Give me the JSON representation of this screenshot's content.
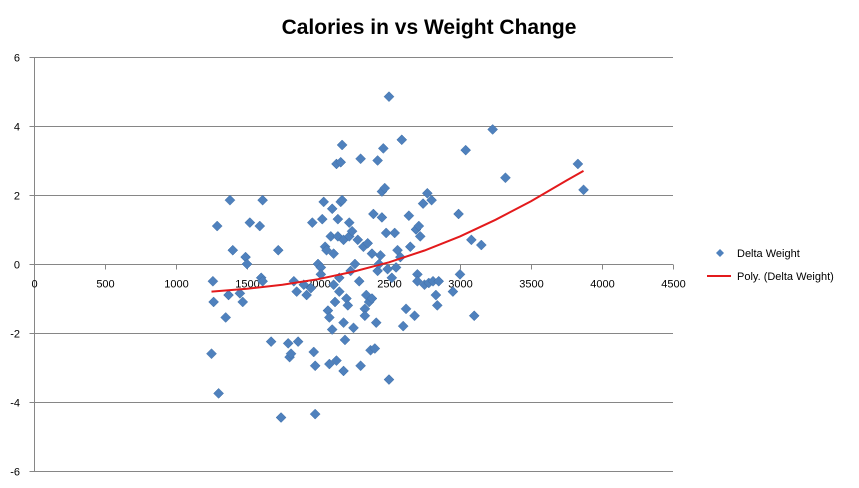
{
  "chart_data": {
    "type": "scatter",
    "title": "Calories in vs Weight Change",
    "xlabel": "",
    "ylabel": "",
    "xlim": [
      0,
      4500
    ],
    "ylim": [
      -6,
      6
    ],
    "x_ticks": [
      0,
      500,
      1000,
      1500,
      2000,
      2500,
      3000,
      3500,
      4000,
      4500
    ],
    "y_ticks": [
      -6,
      -4,
      -2,
      0,
      2,
      4,
      6
    ],
    "grid": "horizontal",
    "legend_position": "right",
    "colors": {
      "points": "#4f81bd",
      "trendline": "#e31a1c",
      "gridline": "#868686",
      "axis": "#868686"
    },
    "series": [
      {
        "name": "Delta Weight",
        "marker": "diamond",
        "points": [
          [
            1250,
            -2.6
          ],
          [
            1260,
            -0.5
          ],
          [
            1265,
            -1.1
          ],
          [
            1290,
            1.1
          ],
          [
            1300,
            -3.75
          ],
          [
            1350,
            -1.55
          ],
          [
            1370,
            -0.9
          ],
          [
            1380,
            1.85
          ],
          [
            1400,
            0.4
          ],
          [
            1450,
            -0.85
          ],
          [
            1470,
            -1.1
          ],
          [
            1490,
            0.2
          ],
          [
            1500,
            0.0
          ],
          [
            1520,
            1.2
          ],
          [
            1590,
            1.1
          ],
          [
            1600,
            -0.4
          ],
          [
            1610,
            -0.5
          ],
          [
            1610,
            1.85
          ],
          [
            1670,
            -2.25
          ],
          [
            1720,
            0.4
          ],
          [
            1740,
            -4.45
          ],
          [
            1790,
            -2.3
          ],
          [
            1800,
            -2.7
          ],
          [
            1810,
            -2.6
          ],
          [
            1830,
            -0.5
          ],
          [
            1850,
            -0.8
          ],
          [
            1860,
            -2.25
          ],
          [
            1900,
            -0.6
          ],
          [
            1920,
            -0.9
          ],
          [
            1950,
            -0.7
          ],
          [
            1960,
            1.2
          ],
          [
            1970,
            -2.55
          ],
          [
            1980,
            -2.95
          ],
          [
            1980,
            -4.35
          ],
          [
            2000,
            0.0
          ],
          [
            2020,
            -0.1
          ],
          [
            2020,
            -0.3
          ],
          [
            2030,
            1.3
          ],
          [
            2040,
            1.8
          ],
          [
            2050,
            0.5
          ],
          [
            2060,
            0.4
          ],
          [
            2070,
            -1.35
          ],
          [
            2080,
            -1.55
          ],
          [
            2080,
            -2.9
          ],
          [
            2090,
            0.8
          ],
          [
            2100,
            1.6
          ],
          [
            2100,
            -1.9
          ],
          [
            2110,
            0.3
          ],
          [
            2110,
            -0.6
          ],
          [
            2120,
            -1.1
          ],
          [
            2130,
            -2.8
          ],
          [
            2130,
            2.9
          ],
          [
            2140,
            1.3
          ],
          [
            2140,
            0.8
          ],
          [
            2150,
            -0.4
          ],
          [
            2150,
            -0.8
          ],
          [
            2160,
            1.8
          ],
          [
            2160,
            2.95
          ],
          [
            2170,
            1.85
          ],
          [
            2170,
            3.45
          ],
          [
            2180,
            0.7
          ],
          [
            2180,
            -1.7
          ],
          [
            2180,
            -3.1
          ],
          [
            2190,
            -2.2
          ],
          [
            2200,
            -1.0
          ],
          [
            2210,
            -1.2
          ],
          [
            2220,
            1.2
          ],
          [
            2220,
            0.8
          ],
          [
            2230,
            -0.2
          ],
          [
            2240,
            0.95
          ],
          [
            2250,
            -1.85
          ],
          [
            2260,
            0.0
          ],
          [
            2280,
            0.7
          ],
          [
            2290,
            -0.5
          ],
          [
            2300,
            -2.95
          ],
          [
            2300,
            3.05
          ],
          [
            2320,
            0.5
          ],
          [
            2330,
            -1.3
          ],
          [
            2330,
            -1.5
          ],
          [
            2340,
            -0.9
          ],
          [
            2350,
            0.6
          ],
          [
            2360,
            -1.1
          ],
          [
            2370,
            -2.5
          ],
          [
            2380,
            0.3
          ],
          [
            2380,
            -1.0
          ],
          [
            2390,
            1.45
          ],
          [
            2400,
            -2.45
          ],
          [
            2410,
            -1.7
          ],
          [
            2420,
            -0.2
          ],
          [
            2420,
            3.0
          ],
          [
            2430,
            0.0
          ],
          [
            2440,
            0.25
          ],
          [
            2450,
            2.1
          ],
          [
            2450,
            1.35
          ],
          [
            2460,
            3.35
          ],
          [
            2470,
            2.2
          ],
          [
            2480,
            0.9
          ],
          [
            2490,
            -0.15
          ],
          [
            2500,
            4.85
          ],
          [
            2500,
            -3.35
          ],
          [
            2520,
            -0.4
          ],
          [
            2540,
            0.9
          ],
          [
            2550,
            -0.1
          ],
          [
            2560,
            0.4
          ],
          [
            2580,
            0.2
          ],
          [
            2590,
            3.6
          ],
          [
            2600,
            -1.8
          ],
          [
            2620,
            -1.3
          ],
          [
            2640,
            1.4
          ],
          [
            2650,
            0.5
          ],
          [
            2680,
            -1.5
          ],
          [
            2690,
            1.0
          ],
          [
            2700,
            -0.3
          ],
          [
            2700,
            -0.5
          ],
          [
            2710,
            1.1
          ],
          [
            2720,
            0.8
          ],
          [
            2740,
            1.75
          ],
          [
            2750,
            -0.6
          ],
          [
            2770,
            2.05
          ],
          [
            2780,
            -0.55
          ],
          [
            2800,
            1.85
          ],
          [
            2810,
            -0.5
          ],
          [
            2830,
            -0.9
          ],
          [
            2840,
            -1.2
          ],
          [
            2850,
            -0.5
          ],
          [
            2950,
            -0.8
          ],
          [
            2990,
            1.45
          ],
          [
            3000,
            -0.3
          ],
          [
            3040,
            3.3
          ],
          [
            3080,
            0.7
          ],
          [
            3100,
            -1.5
          ],
          [
            3150,
            0.55
          ],
          [
            3230,
            3.9
          ],
          [
            3320,
            2.5
          ],
          [
            3830,
            2.9
          ],
          [
            3870,
            2.15
          ]
        ]
      },
      {
        "name": "Poly. (Delta Weight)",
        "kind": "polynomial_trendline",
        "points": [
          [
            1250,
            -0.8
          ],
          [
            1500,
            -0.72
          ],
          [
            1750,
            -0.6
          ],
          [
            2000,
            -0.44
          ],
          [
            2250,
            -0.22
          ],
          [
            2500,
            0.05
          ],
          [
            2750,
            0.39
          ],
          [
            3000,
            0.8
          ],
          [
            3250,
            1.28
          ],
          [
            3500,
            1.82
          ],
          [
            3750,
            2.42
          ],
          [
            3870,
            2.7
          ]
        ]
      }
    ]
  }
}
